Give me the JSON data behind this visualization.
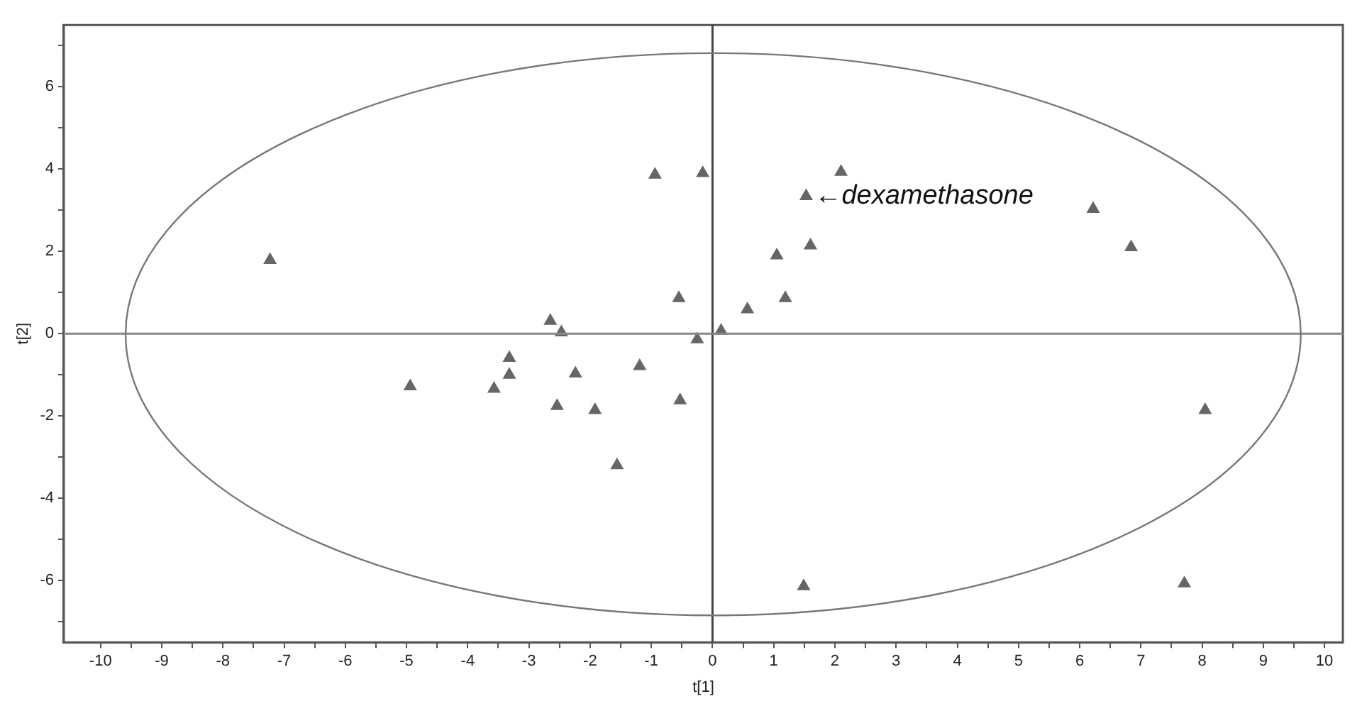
{
  "chart_data": {
    "type": "scatter",
    "xlabel": "t[1]",
    "ylabel": "t[2]",
    "xlim": [
      -10.6,
      10.3
    ],
    "ylim": [
      -7.5,
      7.5
    ],
    "xticks": [
      -10,
      {
        "value": -9.5,
        "label": null
      },
      -9,
      {
        "value": -8.5,
        "label": null
      },
      -8,
      {
        "value": -7.5,
        "label": null
      },
      -7,
      {
        "value": -6.5,
        "label": null
      },
      -6,
      {
        "value": -5.5,
        "label": null
      },
      -5,
      {
        "value": -4.5,
        "label": null
      },
      -4,
      {
        "value": -3.5,
        "label": null
      },
      -3,
      {
        "value": -2.5,
        "label": null
      },
      -2,
      {
        "value": -1.5,
        "label": null
      },
      -1,
      {
        "value": -0.5,
        "label": null
      },
      0,
      {
        "value": 0.5,
        "label": null
      },
      1,
      {
        "value": 1.5,
        "label": null
      },
      2,
      {
        "value": 2.5,
        "label": null
      },
      3,
      {
        "value": 3.5,
        "label": null
      },
      4,
      {
        "value": 4.5,
        "label": null
      },
      5,
      {
        "value": 5.5,
        "label": null
      },
      6,
      {
        "value": 6.5,
        "label": null
      },
      7,
      {
        "value": 7.5,
        "label": null
      },
      8,
      {
        "value": 8.5,
        "label": null
      },
      9,
      {
        "value": 9.5,
        "label": null
      },
      10
    ],
    "yticks": [
      {
        "value": -7,
        "label": null
      },
      -6,
      {
        "value": -5,
        "label": null
      },
      -4,
      {
        "value": -3,
        "label": null
      },
      -2,
      {
        "value": -1,
        "label": null
      },
      0,
      {
        "value": 1,
        "label": null
      },
      2,
      {
        "value": 3,
        "label": null
      },
      4,
      {
        "value": 5,
        "label": null
      },
      6,
      {
        "value": 7,
        "label": null
      }
    ],
    "grid": false,
    "legend": false,
    "marker": "triangle",
    "series": [
      {
        "color": "#666666",
        "x": [
          -7.23,
          -4.94,
          -3.57,
          -3.32,
          -3.32,
          -2.65,
          -2.47,
          -2.54,
          -2.24,
          -1.92,
          -1.56,
          -1.19,
          -0.94,
          -0.55,
          -0.53,
          -0.25,
          -0.16,
          0.14,
          0.57,
          1.05,
          1.19,
          1.53,
          1.6,
          2.1,
          6.22,
          6.84,
          1.49,
          8.05,
          7.71
        ],
        "values": [
          1.79,
          -1.28,
          -1.34,
          -0.59,
          -1.0,
          0.31,
          0.03,
          -1.76,
          -0.97,
          -1.86,
          -3.2,
          -0.79,
          3.86,
          0.86,
          -1.62,
          -0.14,
          3.9,
          0.07,
          0.59,
          1.9,
          0.86,
          3.34,
          2.14,
          3.93,
          3.03,
          2.1,
          -6.14,
          -1.86,
          -6.07
        ]
      }
    ],
    "ref_lines": [
      {
        "axis": "x",
        "value": 0,
        "color": "#444444"
      },
      {
        "axis": "y",
        "value": 0,
        "color": "#888888"
      }
    ],
    "annotations": [
      {
        "text": "←dexamethasone",
        "x": 1.53,
        "y": 3.34
      }
    ]
  }
}
